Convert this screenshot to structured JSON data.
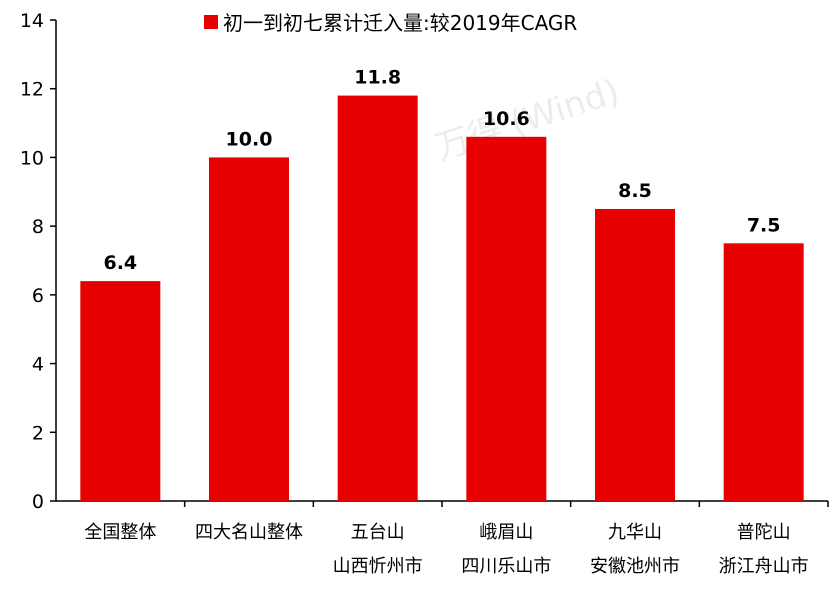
{
  "chart_data": {
    "type": "bar",
    "series": [
      {
        "name": "初一到初七累计迁入量:较2019年CAGR",
        "values": [
          6.4,
          10.0,
          11.8,
          10.6,
          8.5,
          7.5
        ],
        "labels": [
          "6.4",
          "10.0",
          "11.8",
          "10.6",
          "8.5",
          "7.5"
        ]
      }
    ],
    "categories": [
      [
        "全国整体"
      ],
      [
        "四大名山整体"
      ],
      [
        "五台山",
        "山西忻州市"
      ],
      [
        "峨眉山",
        "四川乐山市"
      ],
      [
        "九华山",
        "安徽池州市"
      ],
      [
        "普陀山",
        "浙江舟山市"
      ]
    ],
    "ylim": [
      0,
      14
    ],
    "yticks": [
      "0",
      "2",
      "4",
      "6",
      "8",
      "10",
      "12",
      "14"
    ],
    "legend": "top",
    "grid": false,
    "color": "#E60000"
  },
  "watermark": "万得 (Wind)"
}
